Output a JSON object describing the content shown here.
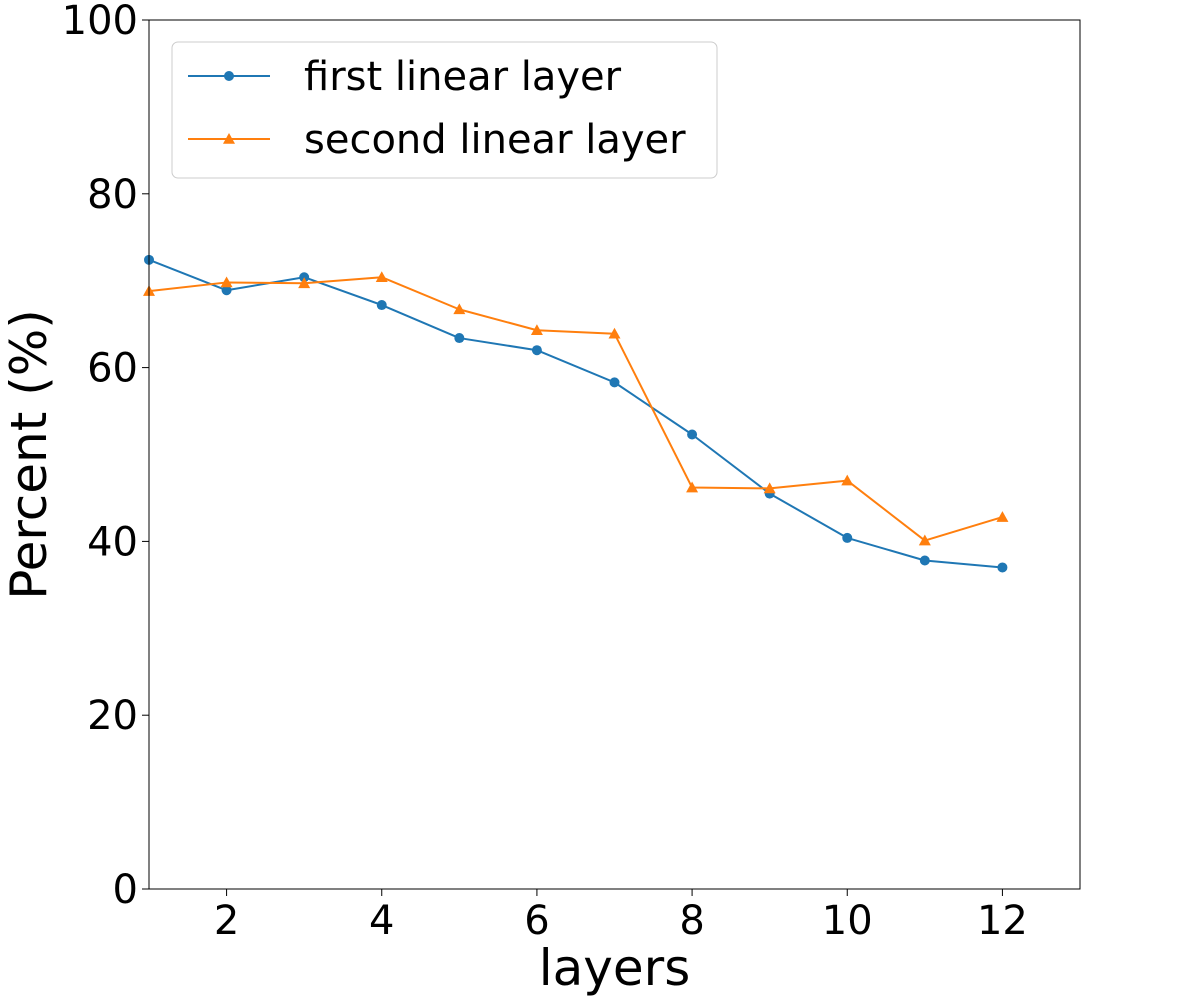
{
  "chart_data": {
    "type": "line",
    "title": "",
    "xlabel": "layers",
    "ylabel": "Percent (%)",
    "xlim": [
      1,
      13
    ],
    "ylim": [
      0,
      100
    ],
    "xticks": [
      2,
      4,
      6,
      8,
      10,
      12
    ],
    "yticks": [
      0,
      20,
      40,
      60,
      80,
      100
    ],
    "grid": false,
    "legend_position": "top-left",
    "x": [
      1,
      2,
      3,
      4,
      5,
      6,
      7,
      8,
      9,
      10,
      11,
      12
    ],
    "series": [
      {
        "name": "first linear layer",
        "color": "#1f77b4",
        "marker": "circle",
        "values": [
          72.4,
          68.9,
          70.4,
          67.2,
          63.4,
          62.0,
          58.3,
          52.3,
          45.5,
          40.4,
          37.8,
          37.0
        ]
      },
      {
        "name": "second linear layer",
        "color": "#ff7f0e",
        "marker": "triangle",
        "values": [
          68.8,
          69.8,
          69.7,
          70.4,
          66.7,
          64.3,
          63.9,
          46.2,
          46.1,
          47.0,
          40.1,
          42.8
        ]
      }
    ]
  }
}
